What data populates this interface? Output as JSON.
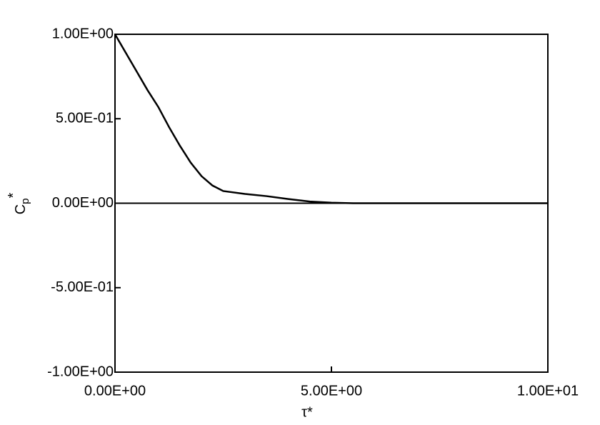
{
  "chart_data": {
    "type": "line",
    "x_label": "τ*",
    "y_label": {
      "main": "C",
      "sub": "p",
      "sup": "*"
    },
    "x": [
      0,
      0.25,
      0.5,
      0.75,
      1,
      1.25,
      1.5,
      1.75,
      2,
      2.25,
      2.5,
      3,
      3.5,
      4,
      4.5,
      5,
      5.5,
      6,
      7,
      8,
      9,
      10
    ],
    "series": [
      {
        "color": "#000000",
        "values": [
          1.0,
          0.89,
          0.78,
          0.67,
          0.57,
          0.45,
          0.34,
          0.24,
          0.16,
          0.105,
          0.072,
          0.055,
          0.042,
          0.025,
          0.01,
          0.003,
          0.0,
          0.0,
          0.0,
          0.0,
          0.0,
          0.0
        ]
      }
    ],
    "xlim": [
      0,
      10
    ],
    "ylim": [
      -1,
      1
    ],
    "xticks": [
      {
        "value": 0,
        "label": "0.00E+00"
      },
      {
        "value": 5,
        "label": "5.00E+00"
      },
      {
        "value": 10,
        "label": "1.00E+01"
      }
    ],
    "yticks": [
      {
        "value": -1,
        "label": "-1.00E+00"
      },
      {
        "value": -0.5,
        "label": "-5.00E-01"
      },
      {
        "value": 0,
        "label": "0.00E+00"
      },
      {
        "value": 0.5,
        "label": "5.00E-01"
      },
      {
        "value": 1,
        "label": "1.00E+00"
      }
    ],
    "hlines": [
      0
    ]
  }
}
